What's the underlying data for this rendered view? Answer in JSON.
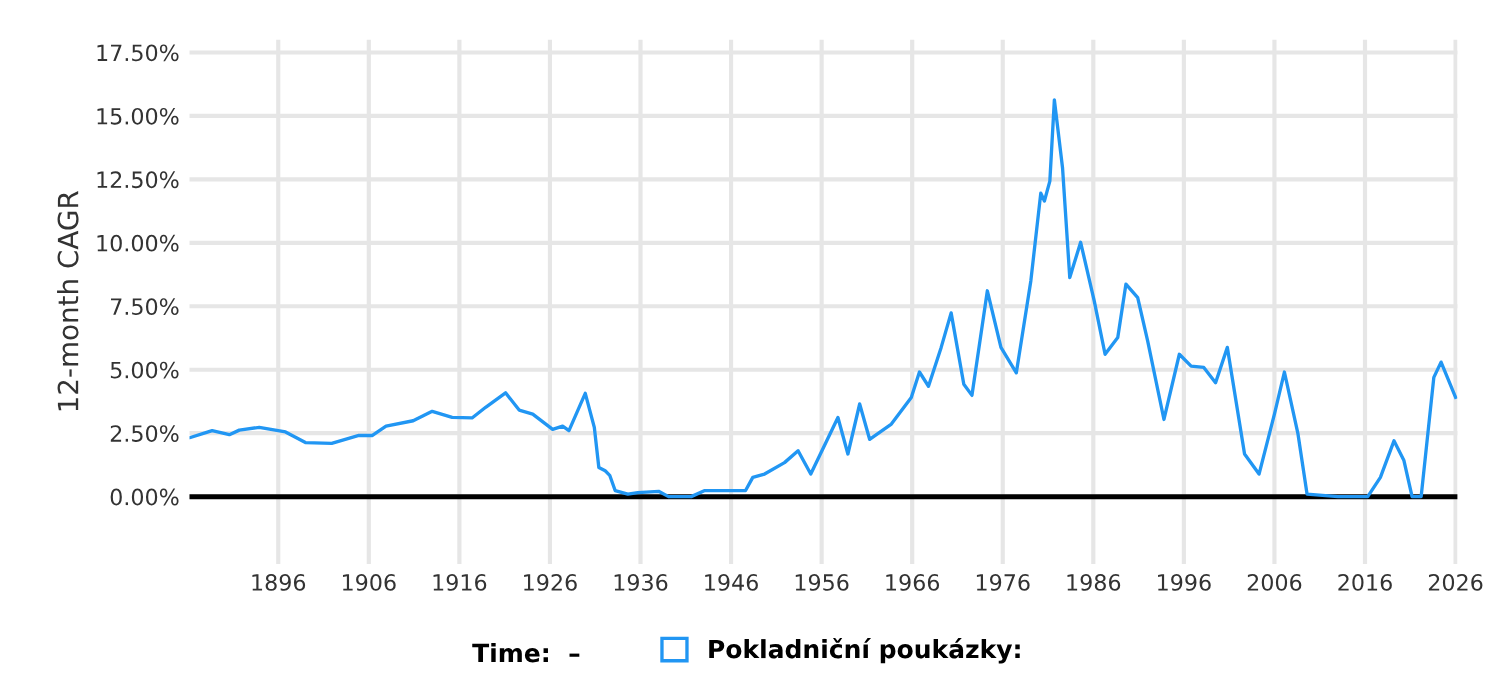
{
  "chart_data": {
    "type": "line",
    "ylabel": "12-month CAGR",
    "annotations": [
      "Time:  –"
    ],
    "series": [
      {
        "name": "Pokladniční poukázky:",
        "color": "#2196f3",
        "x": [
          1886.3,
          1888.0,
          1888.7,
          1890.6,
          1891.7,
          1893.9,
          1896.8,
          1899.0,
          1901.9,
          1904.9,
          1906.4,
          1907.9,
          1910.9,
          1913.0,
          1915.2,
          1917.4,
          1918.9,
          1921.1,
          1922.6,
          1924.1,
          1926.3,
          1927.4,
          1928.1,
          1929.9,
          1930.9,
          1931.4,
          1932.1,
          1932.6,
          1933.2,
          1934.6,
          1935.7,
          1938.0,
          1939.1,
          1941.6,
          1943.1,
          1947.6,
          1948.4,
          1949.7,
          1951.9,
          1953.4,
          1954.8,
          1957.8,
          1958.9,
          1960.2,
          1961.3,
          1963.7,
          1965.9,
          1966.8,
          1967.8,
          1969.2,
          1970.3,
          1971.7,
          1972.6,
          1974.3,
          1975.8,
          1977.5,
          1979.1,
          1980.2,
          1980.6,
          1981.2,
          1981.7,
          1982.6,
          1983.4,
          1984.6,
          1986.1,
          1987.3,
          1988.7,
          1989.6,
          1990.9,
          1992.0,
          1993.8,
          1995.5,
          1996.8,
          1998.2,
          1999.5,
          2000.8,
          2002.7,
          2004.3,
          2006.0,
          2007.1,
          2008.6,
          2009.6,
          2013.0,
          2016.3,
          2017.7,
          2019.2,
          2020.3,
          2021.2,
          2022.2,
          2023.6,
          2024.4,
          2026.0
        ],
        "values": [
          2.33,
          2.52,
          2.6,
          2.44,
          2.62,
          2.73,
          2.55,
          2.13,
          2.1,
          2.41,
          2.41,
          2.78,
          2.99,
          3.36,
          3.12,
          3.1,
          3.52,
          4.09,
          3.41,
          3.25,
          2.65,
          2.78,
          2.6,
          4.07,
          2.73,
          1.15,
          1.02,
          0.84,
          0.24,
          0.1,
          0.16,
          0.21,
          0.0,
          0.0,
          0.24,
          0.24,
          0.76,
          0.89,
          1.34,
          1.81,
          0.89,
          3.12,
          1.68,
          3.65,
          2.26,
          2.86,
          3.91,
          4.91,
          4.35,
          5.88,
          7.24,
          4.43,
          3.99,
          8.11,
          5.88,
          4.88,
          8.5,
          11.96,
          11.65,
          12.43,
          15.63,
          12.96,
          8.63,
          10.02,
          7.71,
          5.61,
          6.27,
          8.37,
          7.84,
          6.14,
          3.04,
          5.61,
          5.14,
          5.09,
          4.49,
          5.88,
          1.68,
          0.89,
          3.25,
          4.91,
          2.47,
          0.1,
          0.0,
          0.0,
          0.76,
          2.2,
          1.42,
          0.0,
          0.0,
          4.7,
          5.3,
          3.91
        ]
      }
    ],
    "xlim": [
      1886.2,
      2026.2
    ],
    "xticks": [
      1896,
      1906,
      1916,
      1926,
      1936,
      1946,
      1956,
      1966,
      1976,
      1986,
      1996,
      2006,
      2016,
      2026
    ],
    "ylim": [
      -2.65,
      18.0
    ],
    "yticks": [
      {
        "value": 0,
        "label": "0.00%"
      },
      {
        "value": 2.5,
        "label": "2.50%"
      },
      {
        "value": 5,
        "label": "5.00%"
      },
      {
        "value": 7.5,
        "label": "7.50%"
      },
      {
        "value": 10,
        "label": "10.00%"
      },
      {
        "value": 12.5,
        "label": "12.50%"
      },
      {
        "value": 15,
        "label": "15.00%"
      },
      {
        "value": 17.5,
        "label": "17.50%"
      }
    ],
    "ref_lines": [
      {
        "axis": "y",
        "value": 0,
        "color": "#000000"
      }
    ],
    "grid": true,
    "legend": "bottom",
    "line_style": "solid",
    "marker": "none"
  }
}
